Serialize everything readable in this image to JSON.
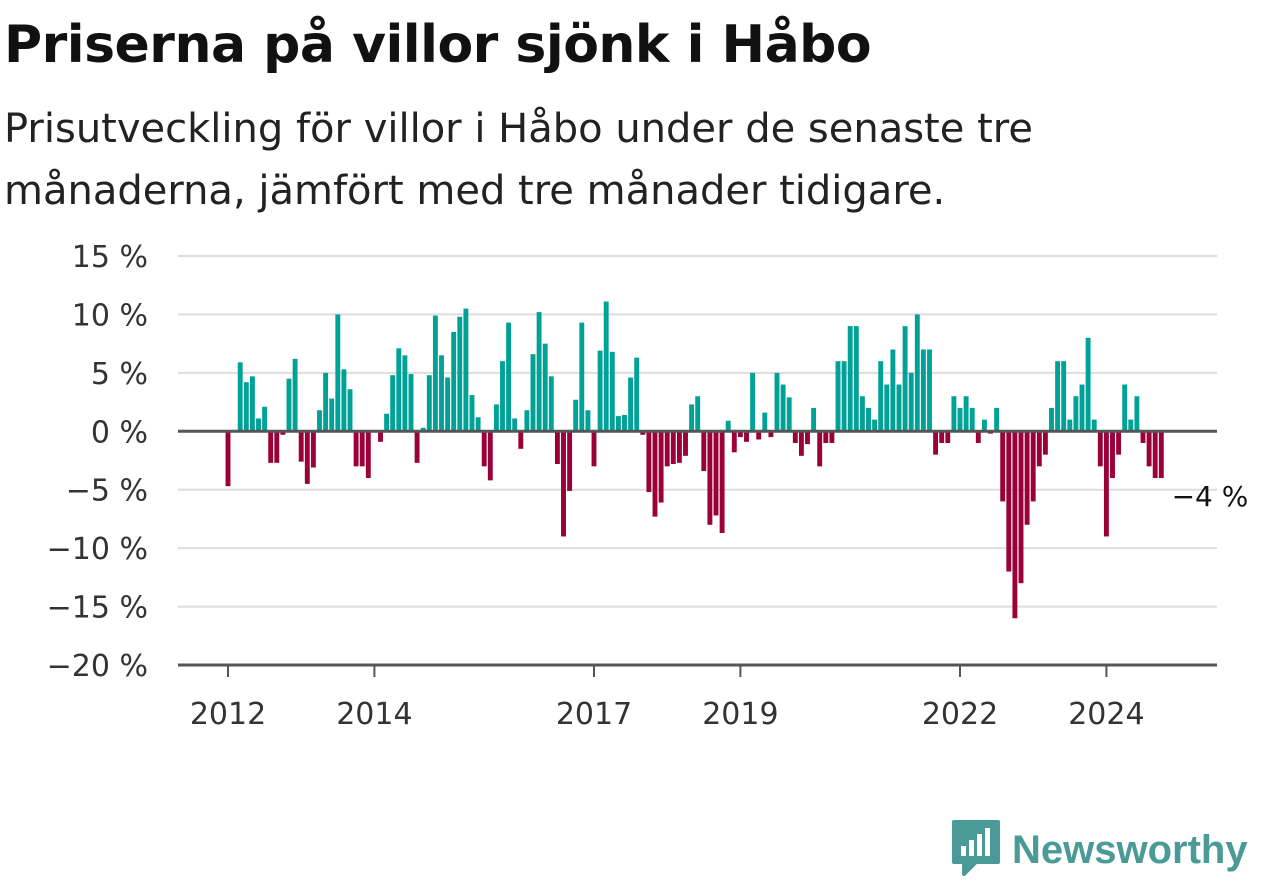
{
  "header": {
    "title": "Priserna på villor sjönk i Håbo",
    "subtitle": "Prisutveckling för villor i Håbo under de senaste tre månaderna, jämfört med tre månader tidigare."
  },
  "brand": {
    "name": "Newsworthy",
    "icon": "newsworthy-logo-icon",
    "color": "#4a9a97"
  },
  "colors": {
    "positive": "#00a197",
    "negative": "#9b0039",
    "grid": "#dddddd",
    "axis": "#555555"
  },
  "chart_data": {
    "type": "bar",
    "title": "Priserna på villor sjönk i Håbo",
    "xlabel": "",
    "ylabel": "",
    "ylim": [
      -20,
      15
    ],
    "yticks": [
      15,
      10,
      5,
      0,
      -5,
      -10,
      -15,
      -20
    ],
    "ytick_labels": [
      "15 %",
      "10 %",
      "5 %",
      "0 %",
      "−5 %",
      "−10 %",
      "−15 %",
      "−20 %"
    ],
    "xticks": [
      "2012",
      "2014",
      "2017",
      "2019",
      "2022",
      "2024"
    ],
    "xtick_dates": [
      "2012-01",
      "2014-01",
      "2017-01",
      "2019-01",
      "2022-01",
      "2024-01"
    ],
    "grid": true,
    "annotation": {
      "text": "−4 %",
      "date": "2025-01",
      "value": -4
    },
    "start_month": "2012-01",
    "values": [
      -4.7,
      0,
      5.9,
      4.2,
      4.7,
      1.1,
      2.1,
      -2.7,
      -2.7,
      -0.3,
      4.5,
      6.2,
      -2.6,
      -4.5,
      -3.1,
      1.8,
      5.0,
      2.8,
      10.0,
      5.3,
      3.6,
      -3.0,
      -3.0,
      -4.0,
      0,
      -0.9,
      1.5,
      4.8,
      7.1,
      6.5,
      4.9,
      -2.7,
      0.3,
      4.8,
      9.9,
      6.5,
      4.6,
      8.5,
      9.8,
      10.5,
      3.1,
      1.2,
      -3.0,
      -4.2,
      2.3,
      6.0,
      9.3,
      1.1,
      -1.5,
      1.8,
      6.6,
      10.2,
      7.5,
      4.7,
      -2.8,
      -9.0,
      -5.1,
      2.7,
      9.3,
      1.8,
      -3.0,
      6.9,
      11.1,
      6.8,
      1.3,
      1.4,
      4.6,
      6.3,
      -0.3,
      -5.2,
      -7.3,
      -6.1,
      -3.0,
      -2.8,
      -2.7,
      -2.1,
      2.3,
      3.0,
      -3.4,
      -8.0,
      -7.2,
      -8.7,
      0.9,
      -1.8,
      -0.5,
      -0.9,
      5.0,
      -0.7,
      1.6,
      -0.5,
      5.0,
      4.0,
      2.9,
      -1.0,
      -2.1,
      -1.1,
      2.0,
      -3.0,
      -1.0,
      -1.0,
      6.0,
      6.0,
      9.0,
      9.0,
      3.0,
      2.0,
      1.0,
      6.0,
      4.0,
      7.0,
      4.0,
      9.0,
      5.0,
      10.0,
      7.0,
      7.0,
      -2.0,
      -1.0,
      -1.0,
      3.0,
      2.0,
      3.0,
      2.0,
      -1.0,
      1.0,
      -0.2,
      2.0,
      -6.0,
      -12.0,
      -16.0,
      -13.0,
      -8.0,
      -6.0,
      -3.0,
      -2.0,
      2.0,
      6.0,
      6.0,
      1.0,
      3.0,
      4.0,
      8.0,
      1.0,
      -3.0,
      -9.0,
      -4.0,
      -2.0,
      4.0,
      1.0,
      3.0,
      -1.0,
      -3.0,
      -4.0,
      -4.0
    ]
  }
}
